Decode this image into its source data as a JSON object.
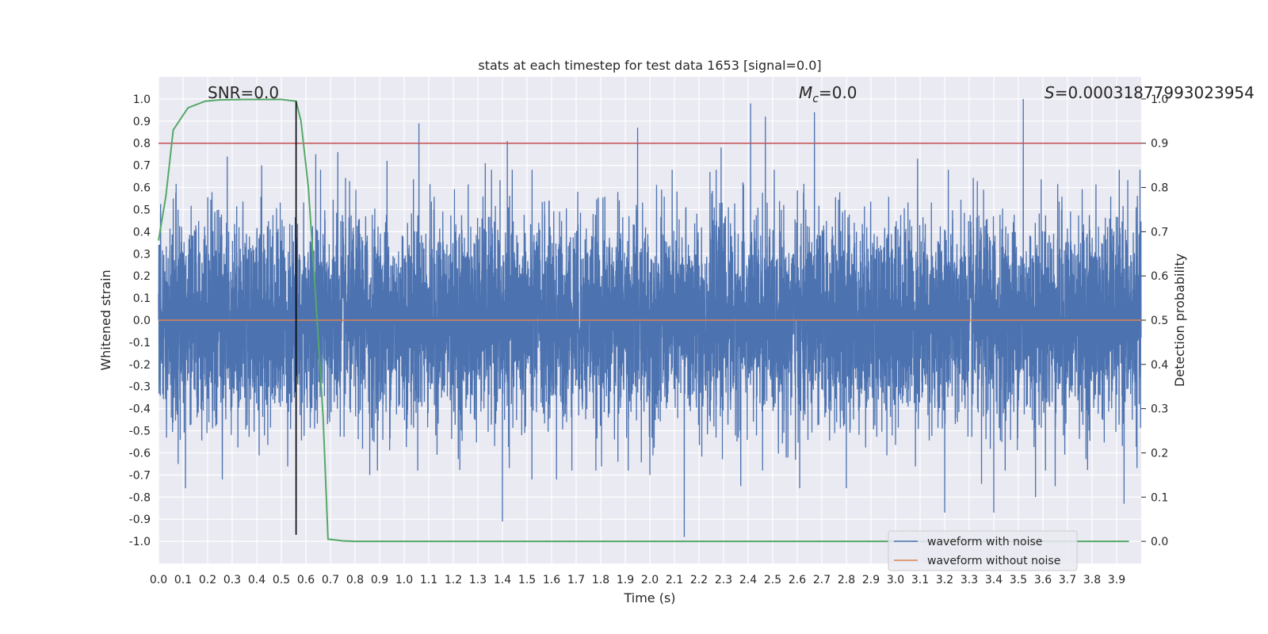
{
  "chart_data": {
    "type": "line",
    "title": "stats at each timestep for test data 1653 [signal=0.0]",
    "xlabel": "Time (s)",
    "ylabel": "Whitened strain",
    "y2label": "Detection probability",
    "xlim": [
      0.0,
      4.0
    ],
    "ylim": [
      -1.1,
      1.1
    ],
    "y2lim": [
      -0.05,
      1.05
    ],
    "grid": true,
    "legend_position": "lower-right",
    "x_ticks": [
      "0.0",
      "0.1",
      "0.2",
      "0.3",
      "0.4",
      "0.5",
      "0.6",
      "0.7",
      "0.8",
      "0.9",
      "1.0",
      "1.1",
      "1.2",
      "1.3",
      "1.4",
      "1.5",
      "1.6",
      "1.7",
      "1.8",
      "1.9",
      "2.0",
      "2.1",
      "2.2",
      "2.3",
      "2.4",
      "2.5",
      "2.6",
      "2.7",
      "2.8",
      "2.9",
      "3.0",
      "3.1",
      "3.2",
      "3.3",
      "3.4",
      "3.5",
      "3.6",
      "3.7",
      "3.8",
      "3.9"
    ],
    "y_ticks": [
      "1.0",
      "0.9",
      "0.8",
      "0.7",
      "0.6",
      "0.5",
      "0.4",
      "0.3",
      "0.2",
      "0.1",
      "0.0",
      "-0.1",
      "-0.2",
      "-0.3",
      "-0.4",
      "-0.5",
      "-0.6",
      "-0.7",
      "-0.8",
      "-0.9",
      "-1.0"
    ],
    "y2_ticks": [
      "1.0",
      "0.9",
      "0.8",
      "0.7",
      "0.6",
      "0.5",
      "0.4",
      "0.3",
      "0.2",
      "0.1",
      "0.0"
    ],
    "annotations": {
      "snr": "SNR=0.0",
      "mc": "M_c=0.0",
      "mc_prefix": "M",
      "mc_sub": "c",
      "mc_value": "=0.0",
      "s_prefix": "S",
      "s_value": "=0.00031877993023954"
    },
    "threshold": {
      "name": "detection threshold",
      "y2": 0.9,
      "color": "#c44e52"
    },
    "peak_marker": {
      "x": 0.56,
      "y_from": -0.97,
      "y_to": 0.99,
      "color": "#000000"
    },
    "series": [
      {
        "name": "waveform with noise",
        "color": "#4c72b0",
        "axis": "left",
        "sample_rate": 2048,
        "envelope": 0.45,
        "spikes": [
          {
            "x": 0.06,
            "y": 0.55
          },
          {
            "x": 0.08,
            "y": -0.65
          },
          {
            "x": 0.11,
            "y": -0.76
          },
          {
            "x": 0.26,
            "y": -0.72
          },
          {
            "x": 0.28,
            "y": 0.74
          },
          {
            "x": 0.42,
            "y": 0.7
          },
          {
            "x": 0.56,
            "y": -0.86
          },
          {
            "x": 0.64,
            "y": 0.75
          },
          {
            "x": 0.73,
            "y": 0.76
          },
          {
            "x": 0.86,
            "y": -0.7
          },
          {
            "x": 0.93,
            "y": 0.72
          },
          {
            "x": 1.06,
            "y": 0.89
          },
          {
            "x": 1.33,
            "y": 0.71
          },
          {
            "x": 1.4,
            "y": -0.91
          },
          {
            "x": 1.42,
            "y": 0.81
          },
          {
            "x": 1.52,
            "y": -0.72
          },
          {
            "x": 1.62,
            "y": -0.72
          },
          {
            "x": 1.87,
            "y": -0.64
          },
          {
            "x": 1.95,
            "y": 0.87
          },
          {
            "x": 2.0,
            "y": -0.7
          },
          {
            "x": 2.14,
            "y": -0.98
          },
          {
            "x": 2.29,
            "y": 0.78
          },
          {
            "x": 2.37,
            "y": -0.75
          },
          {
            "x": 2.41,
            "y": 0.98
          },
          {
            "x": 2.47,
            "y": 0.92
          },
          {
            "x": 2.61,
            "y": -0.76
          },
          {
            "x": 2.67,
            "y": 0.94
          },
          {
            "x": 2.8,
            "y": -0.76
          },
          {
            "x": 3.09,
            "y": 0.73
          },
          {
            "x": 3.2,
            "y": -0.87
          },
          {
            "x": 3.35,
            "y": -0.74
          },
          {
            "x": 3.4,
            "y": -0.87
          },
          {
            "x": 3.52,
            "y": 1.0
          },
          {
            "x": 3.57,
            "y": -0.8
          },
          {
            "x": 3.65,
            "y": -0.75
          },
          {
            "x": 3.93,
            "y": -0.83
          }
        ]
      },
      {
        "name": "waveform without noise",
        "color": "#dd8452",
        "axis": "left",
        "points": [
          [
            0.0,
            0.0
          ],
          [
            4.0,
            0.0
          ]
        ]
      },
      {
        "name": "detection probability",
        "color": "#55a868",
        "axis": "right",
        "points": [
          [
            0.0,
            0.68
          ],
          [
            0.03,
            0.78
          ],
          [
            0.06,
            0.93
          ],
          [
            0.12,
            0.98
          ],
          [
            0.19,
            0.995
          ],
          [
            0.25,
            0.998
          ],
          [
            0.35,
            0.999
          ],
          [
            0.5,
            0.999
          ],
          [
            0.56,
            0.995
          ],
          [
            0.58,
            0.95
          ],
          [
            0.61,
            0.8
          ],
          [
            0.64,
            0.55
          ],
          [
            0.67,
            0.28
          ],
          [
            0.69,
            0.005
          ],
          [
            0.75,
            0.001
          ],
          [
            0.8,
            0.0
          ],
          [
            3.95,
            0.0
          ]
        ]
      }
    ]
  }
}
